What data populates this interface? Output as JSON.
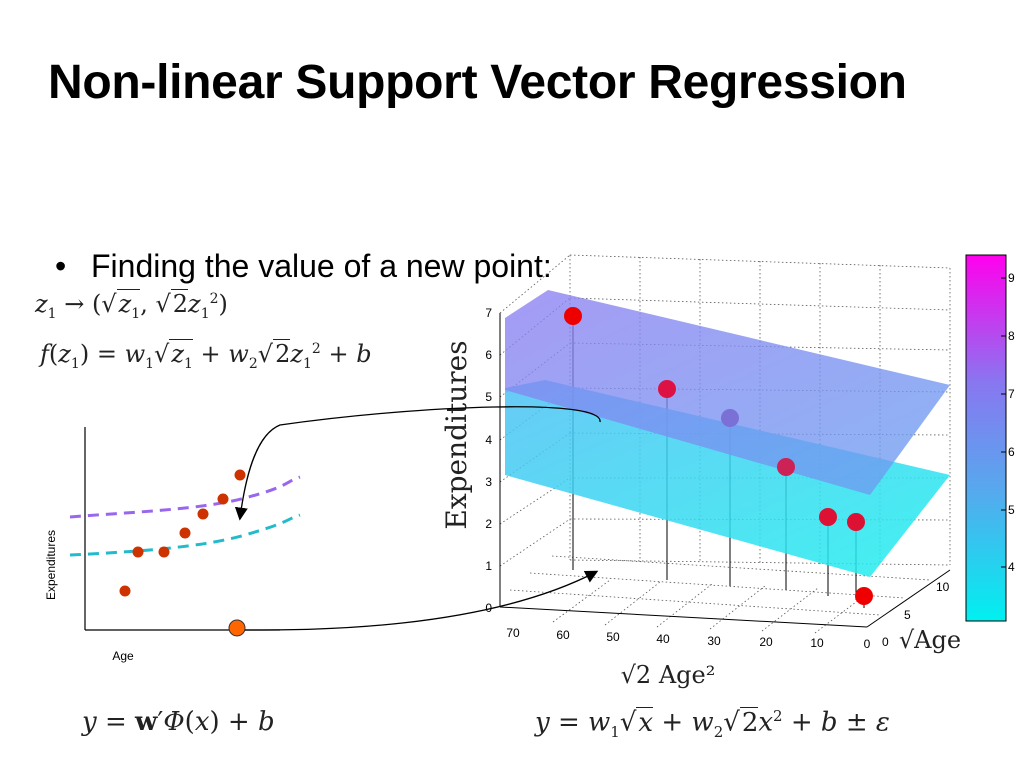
{
  "slide": {
    "title": "Non-linear Support Vector Regression",
    "bullet": "Finding the value of a new point:"
  },
  "equations": {
    "mapping": {
      "lhs": "z",
      "lhs_sub": "1",
      "arrow": "→",
      "a": "z",
      "a_sub": "1",
      "b": "2",
      "c": "z",
      "c_sub": "1",
      "c_sup": "2"
    },
    "f_of_z": {
      "f": "f(z",
      "sub": "1",
      "rest": ") = w"
    },
    "model": "y = w′Φ(x) + b",
    "expanded": "y = w"
  },
  "left_plot": {
    "xlabel": "Age",
    "ylabel": "Expenditures",
    "colors": {
      "points": "#cc3300",
      "upper_band": "#9966ee",
      "lower_band": "#22bbcc",
      "new_point": "#ff6600"
    }
  },
  "chart_data": {
    "type": "scatter",
    "xlabel": "√2 Age²",
    "ylabel": "Expenditures",
    "zlabel": "√Age",
    "x_ticks": [
      "70",
      "60",
      "50",
      "40",
      "30",
      "20",
      "10",
      "0"
    ],
    "y_ticks": [
      "0",
      "1",
      "2",
      "3",
      "4",
      "5",
      "6",
      "7"
    ],
    "z_ticks": [
      "0",
      "5",
      "10"
    ],
    "colorbar_ticks": [
      "4",
      "5",
      "6",
      "7",
      "8",
      "9"
    ],
    "grid": true,
    "points": [
      {
        "x": 62,
        "y": 7.0
      },
      {
        "x": 40,
        "y": 5.3
      },
      {
        "x": 33,
        "y": 4.6
      },
      {
        "x": 22,
        "y": 3.3
      },
      {
        "x": 14,
        "y": 2.0
      },
      {
        "x": 9,
        "y": 2.0
      },
      {
        "x": 2,
        "y": 0.3
      }
    ]
  }
}
